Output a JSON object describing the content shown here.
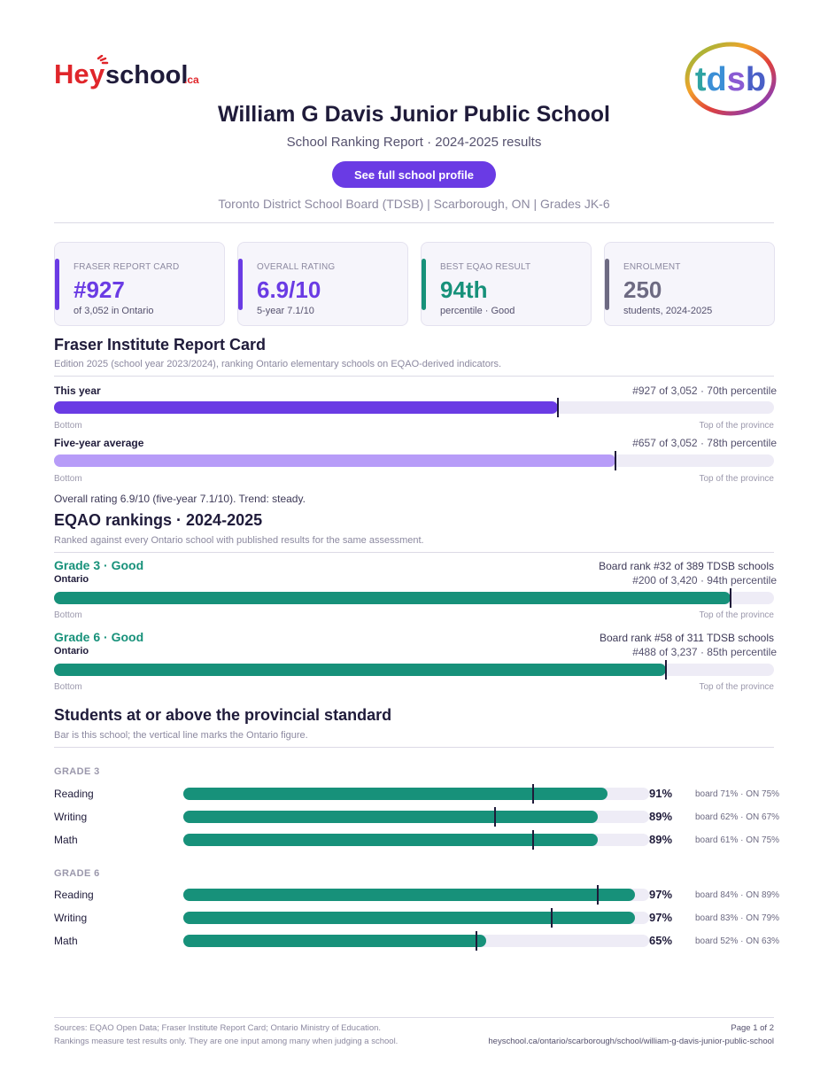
{
  "brand": {
    "logo_text": "Heyschool.ca",
    "board_logo_text": "tdsb"
  },
  "header": {
    "school_name": "William G Davis Junior Public School",
    "subtitle": "School Ranking Report  ·  2024-2025 results",
    "profile_button": "See full school profile",
    "meta": "Toronto District School Board (TDSB)  |  Scarborough, ON  |  Grades JK-6"
  },
  "cards": [
    {
      "label": "FRASER REPORT CARD",
      "value": "#927",
      "sub": "of 3,052 in Ontario",
      "color": "#6a3be4"
    },
    {
      "label": "OVERALL RATING",
      "value": "6.9/10",
      "sub": "5-year 7.1/10",
      "color": "#6a3be4"
    },
    {
      "label": "BEST EQAO RESULT",
      "value": "94th",
      "sub": "percentile  ·  Good",
      "color": "#17917a"
    },
    {
      "label": "ENROLMENT",
      "value": "250",
      "sub": "students, 2024-2025",
      "color": "#6d6a82"
    }
  ],
  "fraser": {
    "title": "Fraser Institute Report Card",
    "note": "Edition 2025 (school year 2023/2024), ranking Ontario elementary schools on EQAO-derived indicators.",
    "axis_left": "Bottom",
    "axis_right": "Top of the province",
    "rows": [
      {
        "label": "This year",
        "detail": "#927 of 3,052  ·  70th percentile",
        "percentile": 70,
        "color": "#6a3be4"
      },
      {
        "label": "Five-year average",
        "detail": "#657 of 3,052  ·  78th percentile",
        "percentile": 78,
        "color": "#b79cf8"
      }
    ],
    "summary": "Overall rating 6.9/10 (five-year 7.1/10). Trend: steady."
  },
  "eqao": {
    "title": "EQAO rankings  ·  2024-2025",
    "note": "Ranked against every Ontario school with published results for the same assessment.",
    "axis_left": "Bottom",
    "axis_right": "Top of the province",
    "grades": [
      {
        "heading": "Grade 3  ·  Good",
        "board_rank": "Board rank #32 of 389 TDSB schools",
        "scope": "Ontario",
        "detail": "#200 of 3,420  ·  94th percentile",
        "percentile": 94
      },
      {
        "heading": "Grade 6  ·  Good",
        "board_rank": "Board rank #58 of 311 TDSB schools",
        "scope": "Ontario",
        "detail": "#488 of 3,237  ·  85th percentile",
        "percentile": 85
      }
    ]
  },
  "standard": {
    "title": "Students at or above the provincial standard",
    "note": "Bar is this school; the vertical line marks the Ontario figure.",
    "groups": [
      {
        "label": "GRADE 3",
        "subjects": [
          {
            "name": "Reading",
            "pct": "91%",
            "value": 91,
            "ontario": 75,
            "compare": "board 71%  ·  ON 75%"
          },
          {
            "name": "Writing",
            "pct": "89%",
            "value": 89,
            "ontario": 67,
            "compare": "board 62%  ·  ON 67%"
          },
          {
            "name": "Math",
            "pct": "89%",
            "value": 89,
            "ontario": 75,
            "compare": "board 61%  ·  ON 75%"
          }
        ]
      },
      {
        "label": "GRADE 6",
        "subjects": [
          {
            "name": "Reading",
            "pct": "97%",
            "value": 97,
            "ontario": 89,
            "compare": "board 84%  ·  ON 89%"
          },
          {
            "name": "Writing",
            "pct": "97%",
            "value": 97,
            "ontario": 79,
            "compare": "board 83%  ·  ON 79%"
          },
          {
            "name": "Math",
            "pct": "65%",
            "value": 65,
            "ontario": 63,
            "compare": "board 52%  ·  ON 63%"
          }
        ]
      }
    ]
  },
  "footer": {
    "sources": "Sources: EQAO Open Data; Fraser Institute Report Card; Ontario Ministry of Education.",
    "disclaimer": "Rankings measure test results only. They are one input among many when judging a school.",
    "page": "Page 1 of 2",
    "url": "heyschool.ca/ontario/scarborough/school/william-g-davis-junior-public-school"
  }
}
